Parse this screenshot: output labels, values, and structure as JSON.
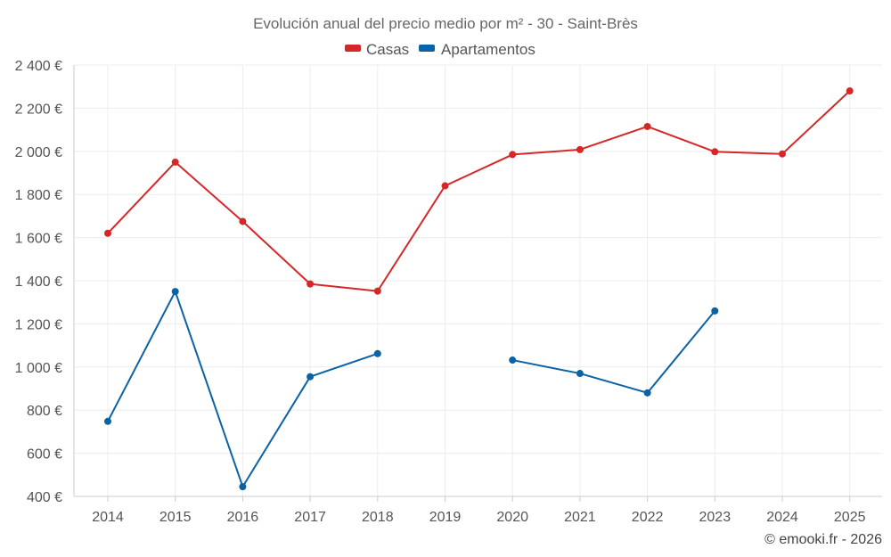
{
  "chart_data": {
    "type": "line",
    "title": "Evolución anual del precio medio por m² - 30 - Saint-Brès",
    "categories": [
      "2014",
      "2015",
      "2016",
      "2017",
      "2018",
      "2019",
      "2020",
      "2021",
      "2022",
      "2023",
      "2024",
      "2025"
    ],
    "yticks": [
      400,
      600,
      800,
      1000,
      1200,
      1400,
      1600,
      1800,
      2000,
      2200,
      2400
    ],
    "ytick_labels": [
      "400 €",
      "600 €",
      "800 €",
      "1 000 €",
      "1 200 €",
      "1 400 €",
      "1 600 €",
      "1 800 €",
      "2 000 €",
      "2 200 €",
      "2 400 €"
    ],
    "ylim": [
      400,
      2400
    ],
    "grid": true,
    "legend_position": "top-center",
    "series": [
      {
        "name": "Casas",
        "color": "#d62728",
        "values": [
          1620,
          1950,
          1675,
          1385,
          1352,
          1840,
          1985,
          2008,
          2115,
          1998,
          1988,
          2280
        ]
      },
      {
        "name": "Apartamentos",
        "color": "#0b62a4",
        "values": [
          748,
          1350,
          445,
          955,
          1062,
          null,
          1032,
          970,
          880,
          1260,
          null,
          null
        ]
      }
    ],
    "credit": "© emooki.fr - 2026"
  }
}
